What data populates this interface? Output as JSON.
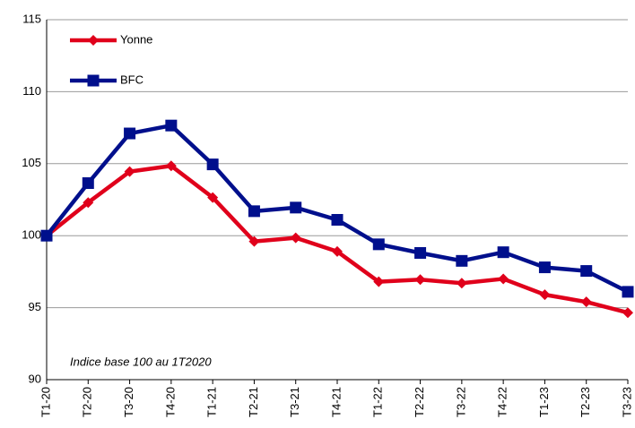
{
  "chart_data": {
    "type": "line",
    "annotation": "Indice base 100 au 1T2020",
    "categories": [
      "T1-20",
      "T2-20",
      "T3-20",
      "T4-20",
      "T1-21",
      "T2-21",
      "T3-21",
      "T4-21",
      "T1-22",
      "T2-22",
      "T3-22",
      "T4-22",
      "T1-23",
      "T2-23",
      "T3-23"
    ],
    "series": [
      {
        "name": "Yonne",
        "color": "#e0001b",
        "marker": "diamond",
        "values": [
          100,
          102.3,
          104.45,
          104.85,
          102.65,
          99.6,
          99.85,
          98.9,
          96.8,
          96.95,
          96.7,
          97.0,
          95.9,
          95.4,
          94.65
        ]
      },
      {
        "name": "BFC",
        "color": "#000f8c",
        "marker": "square",
        "values": [
          100,
          103.65,
          107.1,
          107.65,
          104.95,
          101.7,
          101.95,
          101.1,
          99.4,
          98.8,
          98.25,
          98.85,
          97.8,
          97.55,
          96.1
        ]
      }
    ],
    "ylim": [
      90,
      115
    ],
    "yticks": [
      90,
      95,
      100,
      105,
      110,
      115
    ],
    "grid": true,
    "legend": "top-left"
  }
}
